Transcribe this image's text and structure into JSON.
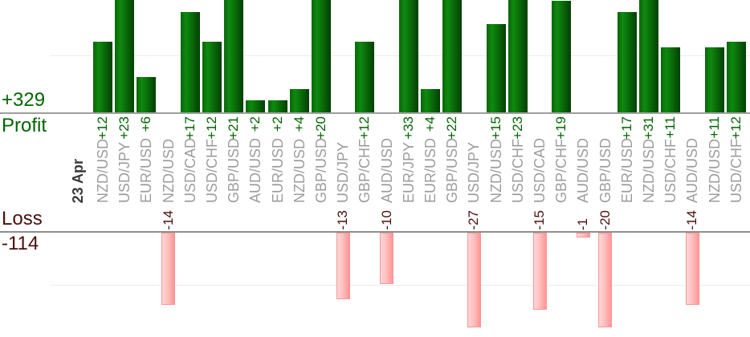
{
  "chart_data": {
    "type": "bar",
    "date_label": "23 Apr",
    "sections": {
      "profit": {
        "label": "Profit",
        "total_label": "+329",
        "total": 329,
        "gridline_value": 10
      },
      "loss": {
        "label": "Loss",
        "total_label": "-114",
        "total": -114,
        "gridline_value": -10
      }
    },
    "legend_position": "left",
    "grid": "horizontal-faint",
    "columns": [
      {
        "pair": "NZD/USD",
        "value": 12,
        "display": "+12"
      },
      {
        "pair": "USD/JPY",
        "value": 23,
        "display": "+23"
      },
      {
        "pair": "EUR/USD",
        "value": 6,
        "display": "+6"
      },
      {
        "pair": "NZD/USD",
        "value": -14,
        "display": "-14"
      },
      {
        "pair": "USD/CAD",
        "value": 17,
        "display": "+17"
      },
      {
        "pair": "USD/CHF",
        "value": 12,
        "display": "+12"
      },
      {
        "pair": "GBP/USD",
        "value": 21,
        "display": "+21"
      },
      {
        "pair": "AUD/USD",
        "value": 2,
        "display": "+2"
      },
      {
        "pair": "EUR/USD",
        "value": 2,
        "display": "+2"
      },
      {
        "pair": "NZD/USD",
        "value": 4,
        "display": "+4"
      },
      {
        "pair": "GBP/USD",
        "value": 20,
        "display": "+20"
      },
      {
        "pair": "USD/JPY",
        "value": -13,
        "display": "-13"
      },
      {
        "pair": "GBP/CHF",
        "value": 12,
        "display": "+12"
      },
      {
        "pair": "AUD/USD",
        "value": -10,
        "display": "-10"
      },
      {
        "pair": "EUR/JPY",
        "value": 33,
        "display": "+33"
      },
      {
        "pair": "EUR/USD",
        "value": 4,
        "display": "+4"
      },
      {
        "pair": "GBP/USD",
        "value": 22,
        "display": "+22"
      },
      {
        "pair": "USD/JPY",
        "value": -27,
        "display": "-27"
      },
      {
        "pair": "NZD/USD",
        "value": 15,
        "display": "+15"
      },
      {
        "pair": "USD/CHF",
        "value": 23,
        "display": "+23"
      },
      {
        "pair": "USD/CAD",
        "value": -15,
        "display": "-15"
      },
      {
        "pair": "GBP/CHF",
        "value": 19,
        "display": "+19"
      },
      {
        "pair": "AUD/USD",
        "value": -1,
        "display": "-1"
      },
      {
        "pair": "GBP/USD",
        "value": -20,
        "display": "-20"
      },
      {
        "pair": "EUR/USD",
        "value": 17,
        "display": "+17"
      },
      {
        "pair": "NZD/USD",
        "value": 31,
        "display": "+31"
      },
      {
        "pair": "USD/CHF",
        "value": 11,
        "display": "+11"
      },
      {
        "pair": "AUD/USD",
        "value": -14,
        "display": "-14"
      },
      {
        "pair": "NZD/USD",
        "value": 11,
        "display": "+11"
      },
      {
        "pair": "USD/CHF",
        "value": 12,
        "display": "+12"
      }
    ],
    "colors": {
      "profit_text": "#006400",
      "loss_text": "#4a0f0f",
      "pair_text": "#9c9c9c",
      "date_text": "#3a3a3a",
      "axis_profit": "#9e9e9e",
      "axis_loss": "#8e8e8e",
      "gridline": "#ececec",
      "profit_bar_left": "#0b650b",
      "profit_bar_mid": "#0e8a0e",
      "profit_bar_right": "#043f04",
      "loss_bar_left": "#ffd6d6",
      "loss_bar_mid": "#ffc0c0",
      "loss_bar_right": "#ff9595",
      "loss_bar_border": "#f79797"
    }
  }
}
